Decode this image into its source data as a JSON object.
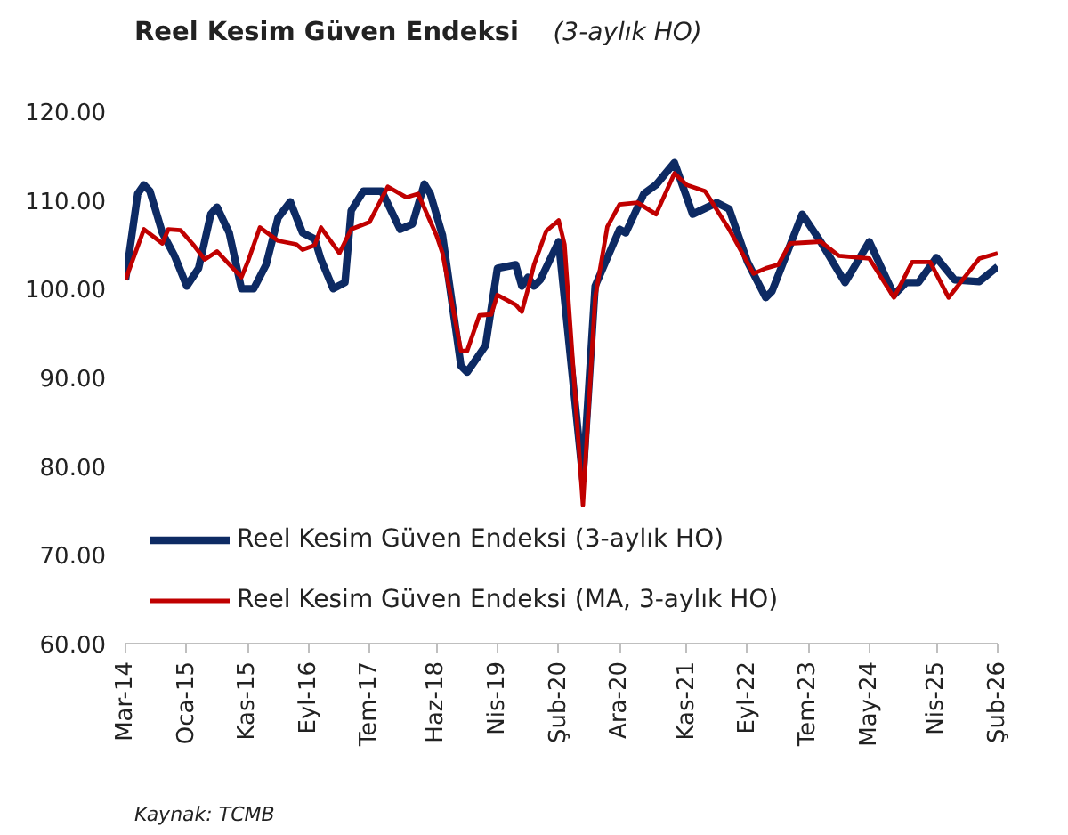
{
  "chart_data": {
    "type": "line",
    "title": "Reel Kesim Güven Endeksi",
    "subtitle": "(3-aylık HO)",
    "annotations": [
      "Kaynak: TCMB"
    ],
    "xlim": [
      "2014-03",
      "2026-02"
    ],
    "xticks": [
      {
        "value": "2014-03",
        "label": "Mar-14"
      },
      {
        "value": "2015-01",
        "label": "Oca-15"
      },
      {
        "value": "2015-11",
        "label": "Kas-15"
      },
      {
        "value": "2016-09",
        "label": "Eyl-16"
      },
      {
        "value": "2017-07",
        "label": "Tem-17"
      },
      {
        "value": "2018-06",
        "label": "Haz-18"
      },
      {
        "value": "2019-04",
        "label": "Nis-19"
      },
      {
        "value": "2020-02",
        "label": "Şub-20"
      },
      {
        "value": "2020-12",
        "label": "Ara-20"
      },
      {
        "value": "2021-11",
        "label": "Kas-21"
      },
      {
        "value": "2022-09",
        "label": "Eyl-22"
      },
      {
        "value": "2023-07",
        "label": "Tem-23"
      },
      {
        "value": "2024-05",
        "label": "May-24"
      },
      {
        "value": "2025-04",
        "label": "Nis-25"
      },
      {
        "value": "2026-02",
        "label": "Şub-26"
      }
    ],
    "ylim": [
      60,
      120
    ],
    "yticks": [
      {
        "value": 60,
        "label": "60.00"
      },
      {
        "value": 70,
        "label": "70.00"
      },
      {
        "value": 80,
        "label": "80.00"
      },
      {
        "value": 90,
        "label": "90.00"
      },
      {
        "value": 100,
        "label": "100.00"
      },
      {
        "value": 110,
        "label": "110.00"
      },
      {
        "value": 120,
        "label": "120.00"
      }
    ],
    "grid": false,
    "legend": "bottom left",
    "marker": "none",
    "line_style": "solid",
    "series": [
      {
        "name": "Reel Kesim Güven Endeksi (3-aylık HO)",
        "color": "#0d2a63",
        "x": [
          "2014-03",
          "2014-05",
          "2014-06",
          "2014-07",
          "2014-09",
          "2014-11",
          "2015-01",
          "2015-03",
          "2015-05",
          "2015-06",
          "2015-08",
          "2015-10",
          "2015-12",
          "2016-02",
          "2016-04",
          "2016-06",
          "2016-08",
          "2016-10",
          "2016-11",
          "2017-01",
          "2017-03",
          "2017-04",
          "2017-06",
          "2017-09",
          "2017-12",
          "2018-02",
          "2018-04",
          "2018-05",
          "2018-07",
          "2018-10",
          "2018-11",
          "2019-02",
          "2019-04",
          "2019-07",
          "2019-08",
          "2019-09",
          "2019-10",
          "2019-11",
          "2020-02",
          "2020-06",
          "2020-08",
          "2020-12",
          "2021-01",
          "2021-04",
          "2021-06",
          "2021-09",
          "2021-12",
          "2022-04",
          "2022-06",
          "2022-09",
          "2022-12",
          "2023-01",
          "2023-06",
          "2023-09",
          "2024-01",
          "2024-05",
          "2024-09",
          "2024-11",
          "2025-01",
          "2025-04",
          "2025-07",
          "2025-11",
          "2026-02"
        ],
        "values": [
          101,
          110.7,
          111.7,
          111,
          106.3,
          103.7,
          100.3,
          102.3,
          108.4,
          109.2,
          106.3,
          100,
          100,
          102.7,
          108,
          109.8,
          106.3,
          105.6,
          103.3,
          100,
          100.7,
          108.8,
          111,
          111,
          106.7,
          107.3,
          111.8,
          110.7,
          106,
          91.3,
          90.6,
          93.6,
          102.3,
          102.7,
          100.3,
          101.3,
          100.3,
          101,
          105.3,
          78.5,
          100.3,
          106.7,
          106.3,
          110.7,
          111.7,
          114.2,
          108.4,
          109.7,
          109,
          103,
          99,
          99.7,
          108.4,
          105.3,
          100.7,
          105.3,
          99.3,
          100.7,
          100.7,
          103.5,
          101,
          100.8,
          102.5
        ]
      },
      {
        "name": "Reel Kesim Güven Endeksi (MA, 3-aylık HO)",
        "color": "#c00000",
        "x": [
          "2014-03",
          "2014-06",
          "2014-09",
          "2014-10",
          "2014-12",
          "2015-02",
          "2015-04",
          "2015-06",
          "2015-10",
          "2015-11",
          "2016-01",
          "2016-04",
          "2016-07",
          "2016-08",
          "2016-10",
          "2016-11",
          "2017-02",
          "2017-04",
          "2017-07",
          "2017-10",
          "2018-01",
          "2018-03",
          "2018-06",
          "2018-07",
          "2018-10",
          "2018-11",
          "2019-01",
          "2019-03",
          "2019-04",
          "2019-07",
          "2019-08",
          "2019-09",
          "2019-10",
          "2019-12",
          "2020-02",
          "2020-03",
          "2020-06",
          "2020-08",
          "2020-10",
          "2020-12",
          "2021-03",
          "2021-06",
          "2021-09",
          "2021-11",
          "2022-02",
          "2022-06",
          "2022-10",
          "2022-12",
          "2023-02",
          "2023-04",
          "2023-09",
          "2023-12",
          "2024-05",
          "2024-09",
          "2024-12",
          "2025-03",
          "2025-06",
          "2025-11",
          "2026-02"
        ],
        "values": [
          101,
          106.7,
          105.1,
          106.7,
          106.6,
          105,
          103.3,
          104.2,
          101.3,
          103,
          106.9,
          105.4,
          105,
          104.4,
          104.9,
          106.9,
          104,
          106.7,
          107.5,
          111.5,
          110.3,
          110.7,
          106,
          104,
          93,
          93,
          97,
          97.1,
          99.3,
          98.2,
          97.4,
          100,
          102.7,
          106.5,
          107.7,
          105,
          75.6,
          99,
          107,
          109.5,
          109.7,
          108.4,
          113,
          111.7,
          111,
          106.7,
          101.7,
          102.3,
          102.7,
          105.1,
          105.3,
          103.7,
          103.4,
          99,
          103,
          103,
          99,
          103.4,
          104
        ]
      }
    ]
  }
}
